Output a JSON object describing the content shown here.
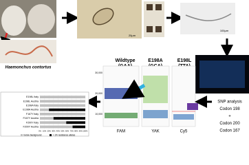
{
  "species": "Haemonchus contortus",
  "scale_egg": "20µm",
  "scale_larva": "100µm",
  "genotypes": [
    {
      "name": "Wildtype",
      "codon": "(GAA)"
    },
    {
      "name": "E198A",
      "codon": "(GCA)"
    },
    {
      "name": "E198L",
      "codon": "(TTA)"
    }
  ],
  "scatter": {
    "yticks": [
      "30,000",
      "20,000",
      "10,000"
    ],
    "channels": [
      "FAM",
      "YAK",
      "Cy5"
    ]
  },
  "analysis": [
    "SNP analysis",
    "Codon 198",
    "+",
    "Codon 200",
    "Codon 167"
  ],
  "chart_data": {
    "type": "bar",
    "orientation": "horizontal",
    "stacked": true,
    "categories": [
      "E198L Italy",
      "E198L Austria",
      "E198A Italy",
      "E198A Austria",
      "F167Y Italy",
      "F167Y Austria",
      "F200Y Italy",
      "F200Y Austria"
    ],
    "series": [
      {
        "name": "below background",
        "color": "#bfbfbf",
        "values": [
          100,
          100,
          100,
          20,
          100,
          30,
          58,
          72
        ]
      },
      {
        "name": "> 1% resistance alleles",
        "color": "#000000",
        "values": [
          0,
          0,
          0,
          80,
          0,
          70,
          42,
          28
        ]
      }
    ],
    "xlim": [
      0,
      100
    ],
    "xticks": [
      {
        "value": 0,
        "label": "0%"
      },
      {
        "value": 10,
        "label": "10%"
      },
      {
        "value": 20,
        "label": "20%"
      },
      {
        "value": 30,
        "label": "30%"
      },
      {
        "value": 40,
        "label": "40%"
      },
      {
        "value": 50,
        "label": "50%"
      },
      {
        "value": 60,
        "label": "60%"
      },
      {
        "value": 70,
        "label": "70%"
      },
      {
        "value": 80,
        "label": "80%"
      },
      {
        "value": 90,
        "label": "90%"
      },
      {
        "value": 100,
        "label": "100%"
      }
    ],
    "legend": "bottom"
  }
}
